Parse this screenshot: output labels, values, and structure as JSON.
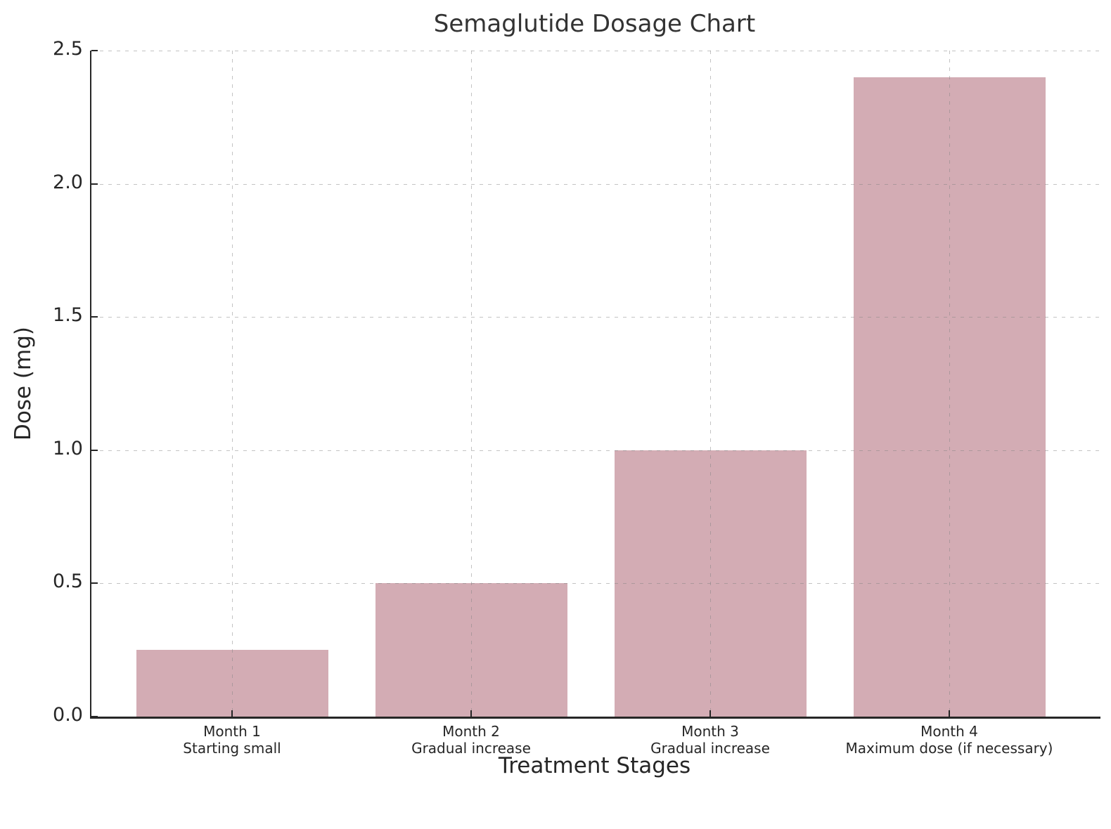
{
  "chart_data": {
    "type": "bar",
    "title": "Semaglutide Dosage Chart",
    "xlabel": "Treatment Stages",
    "ylabel": "Dose (mg)",
    "categories": [
      "Month 1",
      "Month 2",
      "Month 3",
      "Month 4"
    ],
    "category_sublabels": [
      "Starting small",
      "Gradual increase",
      "Gradual increase",
      "Maximum dose (if necessary)"
    ],
    "values": [
      0.25,
      0.5,
      1.0,
      2.4
    ],
    "unit": "mg",
    "ylim": [
      0.0,
      2.5
    ],
    "yticks": [
      0.0,
      0.5,
      1.0,
      1.5,
      2.0,
      2.5
    ],
    "ytick_labels": [
      "0.0",
      "0.5",
      "1.0",
      "1.5",
      "2.0",
      "2.5"
    ],
    "grid": true,
    "grid_style": "dashed",
    "legend_position": "none",
    "colors": {
      "bar_fill": "#d3acb4",
      "axis_spine": "#262626",
      "tick_label": "#262626",
      "title_text": "#333333",
      "gridline": "#c4c4c4",
      "background": "#ffffff"
    }
  }
}
